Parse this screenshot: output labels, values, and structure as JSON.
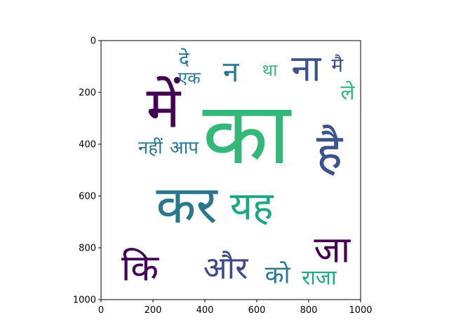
{
  "chart_data": {
    "type": "wordcloud",
    "title": "",
    "xlabel": "",
    "ylabel": "",
    "xlim": [
      0,
      1000
    ],
    "ylim": [
      1000,
      0
    ],
    "x_ticks": [
      0,
      200,
      400,
      600,
      800,
      1000
    ],
    "y_ticks": [
      0,
      200,
      400,
      600,
      800,
      1000
    ],
    "grid": false,
    "colormap": "viridis",
    "words": [
      {
        "text": "का",
        "x": 560,
        "y": 360,
        "size": 330,
        "color": "#35b779"
      },
      {
        "text": "कर",
        "x": 330,
        "y": 635,
        "size": 200,
        "color": "#2a788e"
      },
      {
        "text": "में",
        "x": 240,
        "y": 260,
        "size": 220,
        "color": "#440154"
      },
      {
        "text": "है",
        "x": 880,
        "y": 430,
        "size": 190,
        "color": "#3b528b"
      },
      {
        "text": "यह",
        "x": 580,
        "y": 640,
        "size": 150,
        "color": "#21a685"
      },
      {
        "text": "जा",
        "x": 890,
        "y": 810,
        "size": 140,
        "color": "#440154"
      },
      {
        "text": "कि",
        "x": 150,
        "y": 880,
        "size": 140,
        "color": "#440154"
      },
      {
        "text": "और",
        "x": 480,
        "y": 880,
        "size": 120,
        "color": "#3e4a89"
      },
      {
        "text": "को",
        "x": 680,
        "y": 905,
        "size": 95,
        "color": "#2a788e"
      },
      {
        "text": "राजा",
        "x": 840,
        "y": 915,
        "size": 80,
        "color": "#21a685"
      },
      {
        "text": "नहीं",
        "x": 190,
        "y": 415,
        "size": 70,
        "color": "#2a788e"
      },
      {
        "text": "आप",
        "x": 320,
        "y": 415,
        "size": 70,
        "color": "#2a788e"
      },
      {
        "text": "एक",
        "x": 340,
        "y": 145,
        "size": 65,
        "color": "#2a788e"
      },
      {
        "text": "दे",
        "x": 320,
        "y": 70,
        "size": 75,
        "color": "#2a788e"
      },
      {
        "text": "था",
        "x": 650,
        "y": 115,
        "size": 65,
        "color": "#35b779"
      },
      {
        "text": "ले",
        "x": 950,
        "y": 200,
        "size": 80,
        "color": "#35b779"
      },
      {
        "text": "मै",
        "x": 910,
        "y": 95,
        "size": 75,
        "color": "#3e4a89"
      },
      {
        "text": "ना",
        "x": 790,
        "y": 110,
        "size": 140,
        "color": "#3b528b"
      },
      {
        "text": "न",
        "x": 500,
        "y": 120,
        "size": 110,
        "color": "#2a788e"
      }
    ]
  }
}
